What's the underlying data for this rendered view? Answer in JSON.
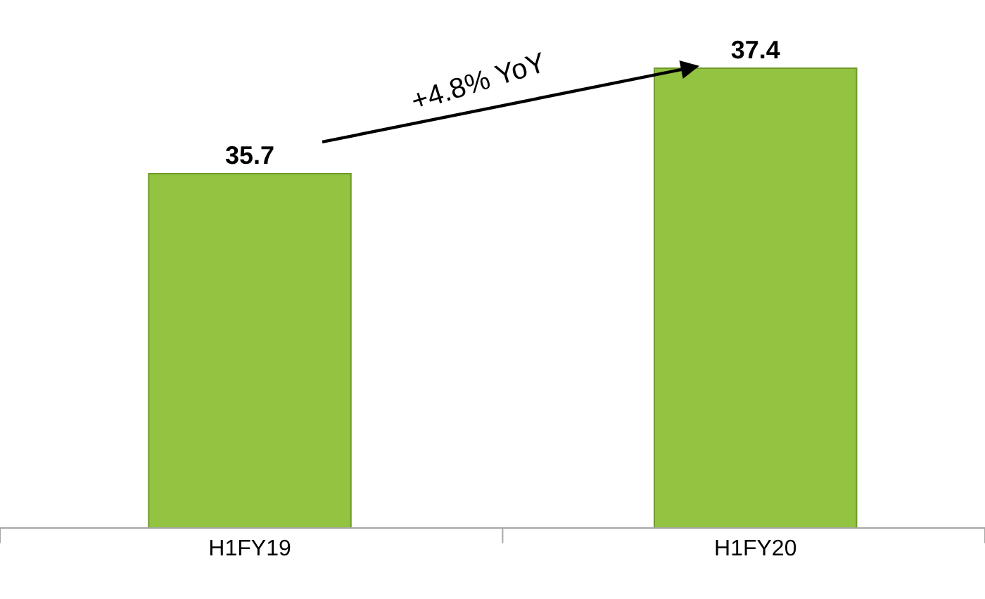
{
  "chart_data": {
    "type": "bar",
    "categories": [
      "H1FY19",
      "H1FY20"
    ],
    "values": [
      35.7,
      37.4
    ],
    "color": "#92c341",
    "ylim": [
      30,
      38.5
    ],
    "tick_labels": "x",
    "data_labels": true,
    "legend": false,
    "annotations": [
      "+4.8% YoY"
    ]
  }
}
